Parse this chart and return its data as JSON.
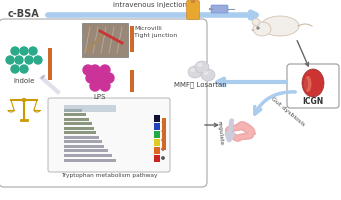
{
  "background_color": "#ffffff",
  "blue_arrow_color": "#aaccee",
  "dark_arrow_color": "#666666",
  "orange_bar_color": "#d06828",
  "teal_color": "#2aaa88",
  "magenta_color": "#cc3399",
  "text_color": "#444444",
  "cbsa_label": "c-BSA",
  "injection_label": "intravenous injection",
  "icgn_label": "ICGN",
  "indole_label": "Indole",
  "lps_label": "LPS",
  "mmf_losartan_label": "MMF， Losartan",
  "gut_dysbiosis_label": "Gut dysbiosis",
  "tryptophan_label": "Tryptophan metabolism pathway",
  "microvilli_label": "Microvilli\nTight junction",
  "regulate_label": "regulate"
}
